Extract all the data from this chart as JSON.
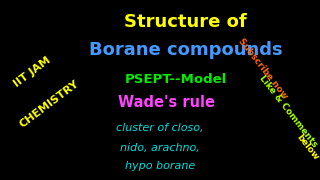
{
  "background_color": "#000000",
  "title_line1": "Structure of",
  "title_line2": "Borane compounds",
  "title_line1_color": "#ffff00",
  "title_line2_color": "#4499ff",
  "psept_text": "PSEPT--Model",
  "psept_color": "#00ee00",
  "wades_text": "Wade's rule",
  "wades_color": "#ff44ff",
  "cluster_line1": "cluster of closo,",
  "cluster_line2": "nido, arachno,",
  "cluster_line3": "hypo borane",
  "cluster_color": "#00dddd",
  "iit_line1": "IIT JAM",
  "iit_line2": "CHEMISTRY",
  "iit_color": "#ffff00",
  "subscribe_text": "Subscribe now",
  "subscribe_color": "#ff6600",
  "like_text": "Like & Comments",
  "like_color": "#aaff00",
  "below_text": "below",
  "below_color": "#ffff00"
}
